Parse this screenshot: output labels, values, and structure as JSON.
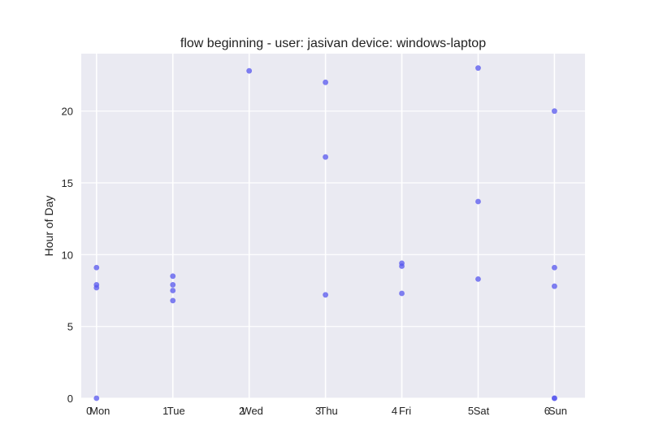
{
  "chart_data": {
    "type": "scatter",
    "title": "flow beginning - user: jasivan device: windows-laptop",
    "xlabel": "",
    "ylabel": "Hour of Day",
    "categories": [
      "0",
      "1",
      "2",
      "3",
      "4",
      "5",
      "6"
    ],
    "category_overlay_labels": [
      "Mon",
      "Tue",
      "Wed",
      "Thu",
      "Fri",
      "Sat",
      "Sun"
    ],
    "xlim": [
      -0.2,
      6.4
    ],
    "ylim": [
      0,
      24
    ],
    "yticks": [
      0,
      5,
      10,
      15,
      20
    ],
    "grid": true,
    "background_color": "#eaeaf2",
    "grid_color": "#ffffff",
    "point_color": "#5555ee",
    "series": [
      {
        "points": [
          {
            "x": 0,
            "y": 9.1
          },
          {
            "x": 0,
            "y": 7.9
          },
          {
            "x": 0,
            "y": 7.7
          },
          {
            "x": 0,
            "y": 0.0
          },
          {
            "x": 1,
            "y": 8.5
          },
          {
            "x": 1,
            "y": 7.9
          },
          {
            "x": 1,
            "y": 7.5
          },
          {
            "x": 1,
            "y": 6.8
          },
          {
            "x": 2,
            "y": 22.8
          },
          {
            "x": 3,
            "y": 22.0
          },
          {
            "x": 3,
            "y": 16.8
          },
          {
            "x": 3,
            "y": 7.2
          },
          {
            "x": 4,
            "y": 9.4
          },
          {
            "x": 4,
            "y": 9.2
          },
          {
            "x": 4,
            "y": 7.3
          },
          {
            "x": 5,
            "y": 23.0
          },
          {
            "x": 5,
            "y": 13.7
          },
          {
            "x": 5,
            "y": 8.3
          },
          {
            "x": 6,
            "y": 20.0
          },
          {
            "x": 6,
            "y": 9.1
          },
          {
            "x": 6,
            "y": 7.8
          },
          {
            "x": 6,
            "y": 0.0
          },
          {
            "x": 6,
            "y": 0.0
          }
        ]
      }
    ]
  }
}
